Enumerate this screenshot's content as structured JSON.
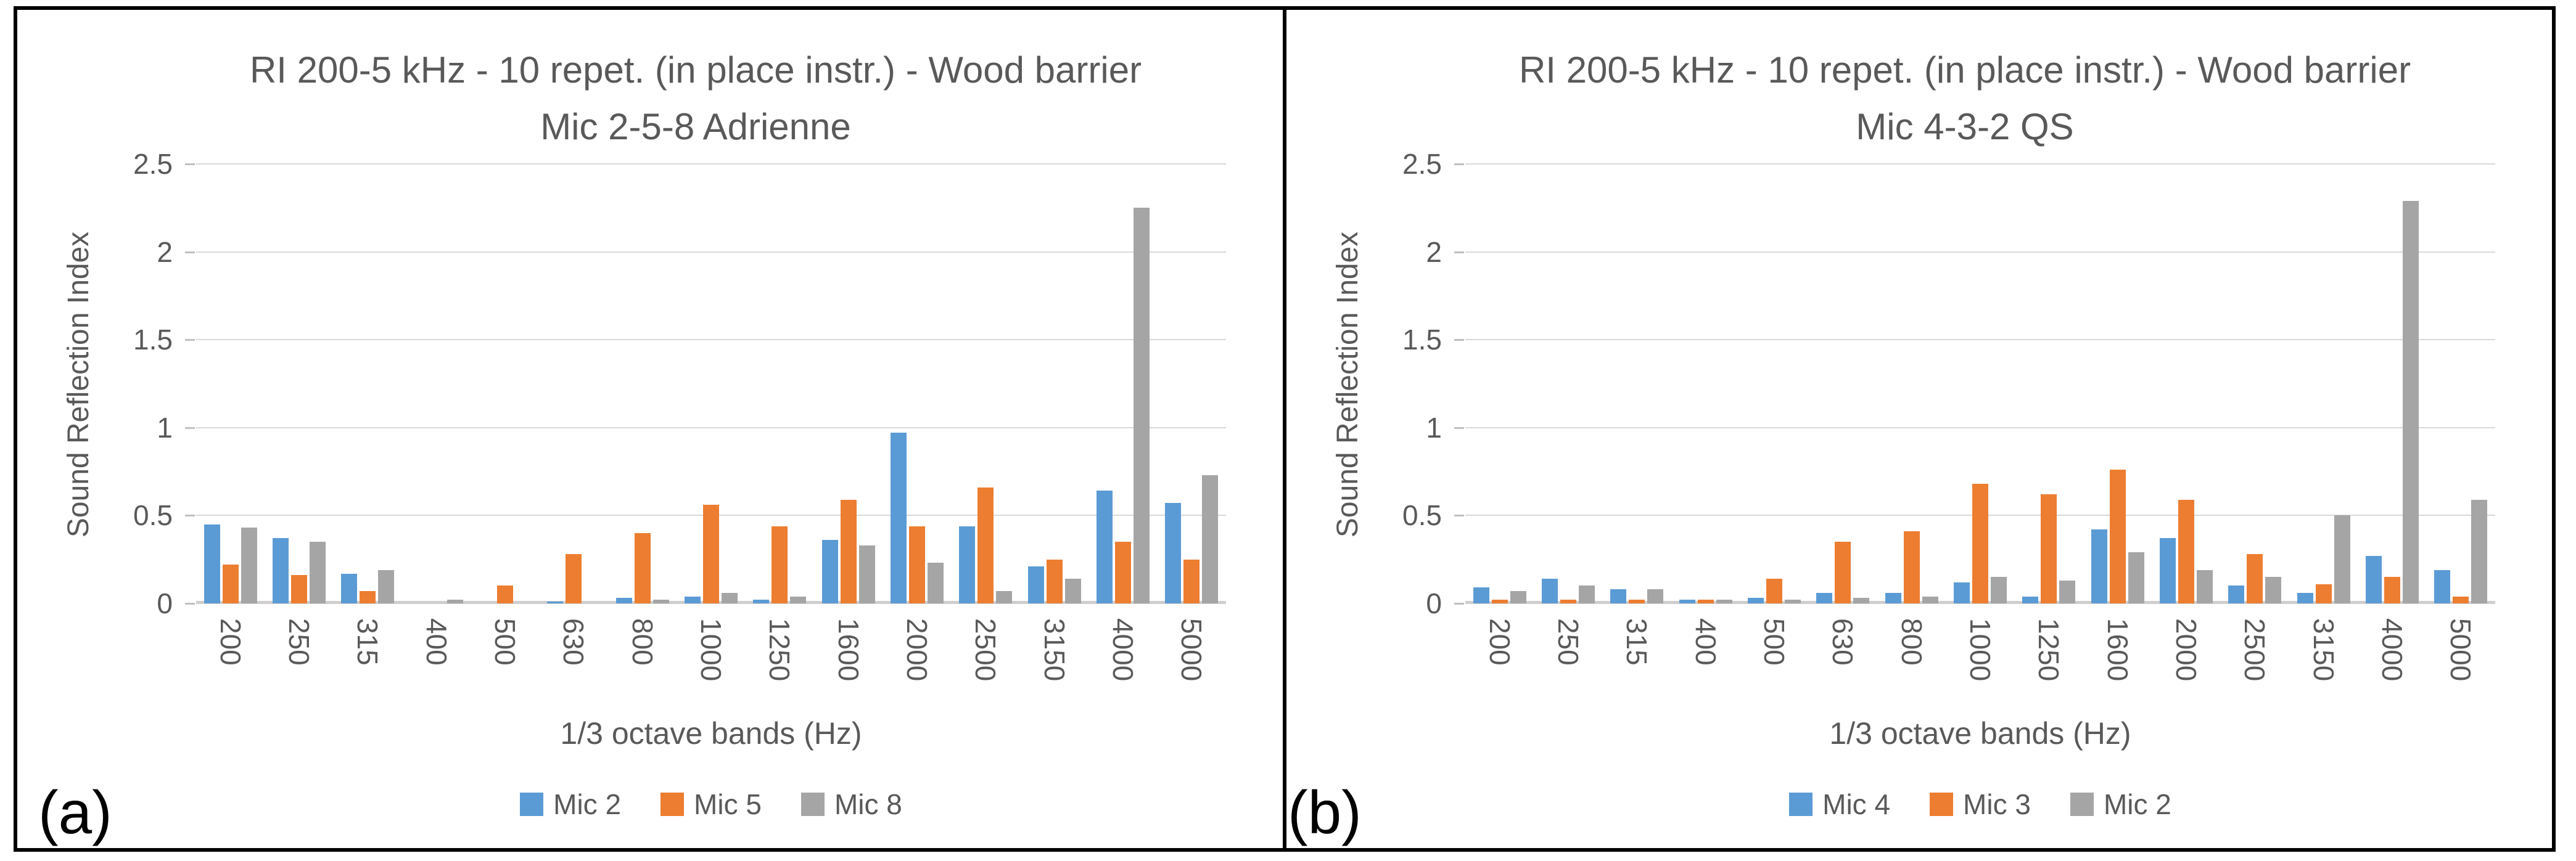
{
  "figure": {
    "background": "#FFFFFF",
    "border_color": "#000000",
    "text_color": "#595959",
    "grid_color": "#D9D9D9"
  },
  "chart_data": [
    {
      "type": "bar",
      "panel_label": "(a)",
      "title": "RI 200-5 kHz - 10 repet. (in place instr.) - Wood barrier",
      "subtitle": "Mic 2-5-8 Adrienne",
      "xlabel": "1/3 octave bands (Hz)",
      "ylabel": "Sound Reflection Index",
      "ylim": [
        0,
        2.5
      ],
      "yticks": [
        "0",
        "0.5",
        "1",
        "1.5",
        "2",
        "2.5"
      ],
      "grid": true,
      "legend_position": "bottom",
      "categories": [
        "200",
        "250",
        "315",
        "400",
        "500",
        "630",
        "800",
        "1000",
        "1250",
        "1600",
        "2000",
        "2500",
        "3150",
        "4000",
        "5000"
      ],
      "series": [
        {
          "name": "Mic 2",
          "color": "#5B9BD5",
          "values": [
            0.45,
            0.37,
            0.17,
            0.0,
            0.0,
            0.01,
            0.03,
            0.04,
            0.02,
            0.36,
            0.97,
            0.44,
            0.21,
            0.64,
            0.57
          ]
        },
        {
          "name": "Mic 5",
          "color": "#ED7D31",
          "values": [
            0.22,
            0.16,
            0.07,
            0.0,
            0.1,
            0.28,
            0.4,
            0.56,
            0.44,
            0.59,
            0.44,
            0.66,
            0.25,
            0.35,
            0.25
          ]
        },
        {
          "name": "Mic 8",
          "color": "#A5A5A5",
          "values": [
            0.43,
            0.35,
            0.19,
            0.02,
            0.0,
            0.0,
            0.02,
            0.06,
            0.04,
            0.33,
            0.23,
            0.07,
            0.14,
            2.25,
            0.73
          ]
        }
      ]
    },
    {
      "type": "bar",
      "panel_label": "(b)",
      "title": "RI 200-5 kHz - 10 repet. (in place instr.) - Wood barrier",
      "subtitle": "Mic 4-3-2 QS",
      "xlabel": "1/3 octave bands (Hz)",
      "ylabel": "Sound Reflection Index",
      "ylim": [
        0,
        2.5
      ],
      "yticks": [
        "0",
        "0.5",
        "1",
        "1.5",
        "2",
        "2.5"
      ],
      "grid": true,
      "legend_position": "bottom",
      "categories": [
        "200",
        "250",
        "315",
        "400",
        "500",
        "630",
        "800",
        "1000",
        "1250",
        "1600",
        "2000",
        "2500",
        "3150",
        "4000",
        "5000"
      ],
      "series": [
        {
          "name": "Mic 4",
          "color": "#5B9BD5",
          "values": [
            0.09,
            0.14,
            0.08,
            0.02,
            0.03,
            0.06,
            0.06,
            0.12,
            0.04,
            0.42,
            0.37,
            0.1,
            0.06,
            0.27,
            0.19
          ]
        },
        {
          "name": "Mic 3",
          "color": "#ED7D31",
          "values": [
            0.02,
            0.02,
            0.02,
            0.02,
            0.14,
            0.35,
            0.41,
            0.68,
            0.62,
            0.76,
            0.59,
            0.28,
            0.11,
            0.15,
            0.04
          ]
        },
        {
          "name": "Mic 2",
          "color": "#A5A5A5",
          "values": [
            0.07,
            0.1,
            0.08,
            0.02,
            0.02,
            0.03,
            0.04,
            0.15,
            0.13,
            0.29,
            0.19,
            0.15,
            0.5,
            2.29,
            0.59
          ]
        }
      ]
    }
  ]
}
